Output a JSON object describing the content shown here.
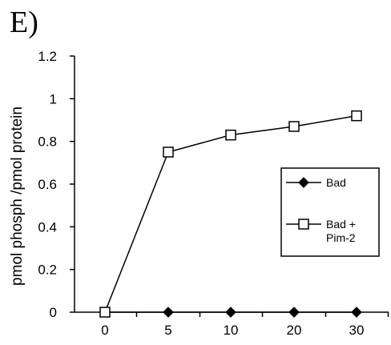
{
  "panel_label": "E)",
  "chart_data": {
    "type": "line",
    "title": "",
    "xlabel": "",
    "ylabel": "pmol phosph /pmol protein",
    "categories": [
      "0",
      "5",
      "10",
      "20",
      "30"
    ],
    "ylim": [
      0,
      1.2
    ],
    "yticks": [
      "0",
      "0.2",
      "0.4",
      "0.6",
      "0.8",
      "1",
      "1.2"
    ],
    "grid": false,
    "legend_position": "right",
    "series": [
      {
        "name": "Bad",
        "legend_lines": [
          "Bad"
        ],
        "values": [
          0.0,
          0.0,
          0.0,
          0.0,
          0.0
        ],
        "marker": "diamond",
        "marker_fill": "#000000",
        "color": "#000000"
      },
      {
        "name": "Bad + Pim-2",
        "legend_lines": [
          "Bad +",
          "Pim-2"
        ],
        "values": [
          0.0,
          0.75,
          0.83,
          0.87,
          0.92
        ],
        "marker": "square",
        "marker_fill": "#ffffff",
        "color": "#000000"
      }
    ]
  }
}
